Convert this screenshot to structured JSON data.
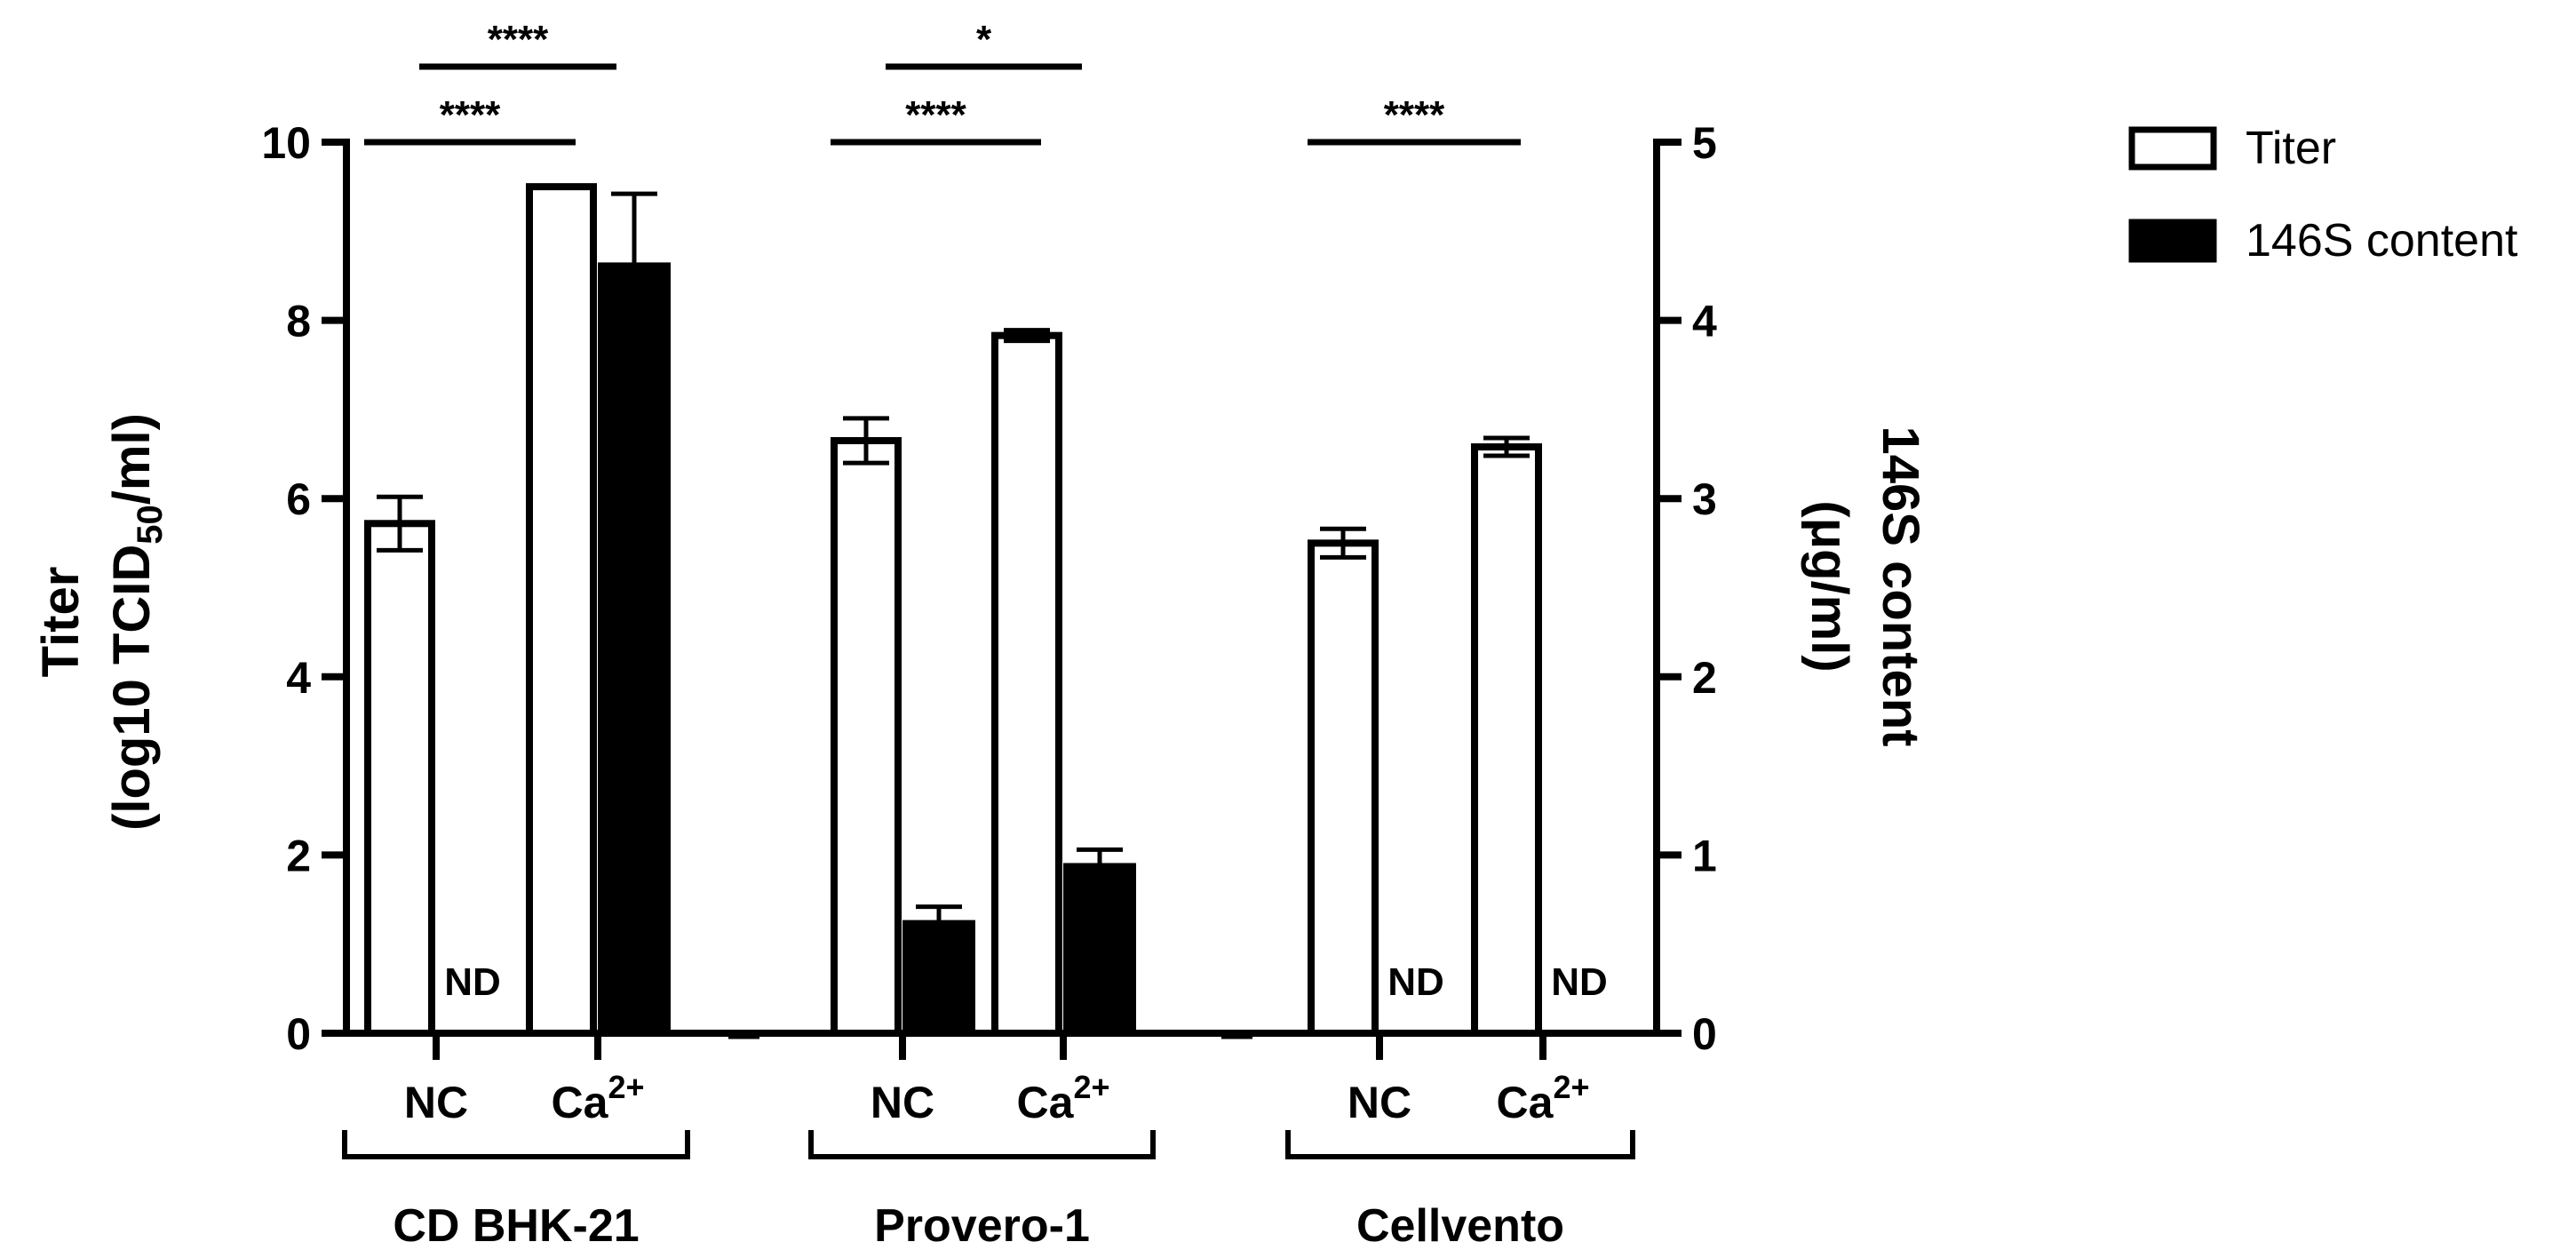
{
  "chart_data": {
    "type": "bar",
    "left_axis": {
      "title_line1": "Titer",
      "title_line2_prefix": "(log10 TCID",
      "title_line2_sub": "50",
      "title_line2_suffix": "/ml)",
      "ylim": [
        0,
        10
      ],
      "ticks": [
        "0",
        "2",
        "4",
        "6",
        "8",
        "10"
      ]
    },
    "right_axis": {
      "title_line1": "146S content",
      "title_line2": "(μg/ml)",
      "ylim": [
        0,
        5
      ],
      "ticks": [
        "0",
        "1",
        "2",
        "3",
        "4",
        "5"
      ]
    },
    "series_meta": [
      {
        "name": "Titer",
        "color": "#ffffff",
        "axis": "left"
      },
      {
        "name": "146S content",
        "color": "#000000",
        "axis": "right"
      }
    ],
    "groups": [
      {
        "name": "CD BHK-21",
        "conditions": [
          {
            "label": "NC",
            "sup": "",
            "titer": 5.72,
            "titer_err": 0.3,
            "s146": null,
            "s146_err": null,
            "s146_label": "ND"
          },
          {
            "label": "Ca",
            "sup": "2+",
            "titer": 9.5,
            "titer_err": 0,
            "s146": 4.32,
            "s146_err": 0.39,
            "s146_label": ""
          }
        ],
        "sig": [
          {
            "text": "****",
            "from": "titer-0",
            "to": "titer-1",
            "level": 1
          },
          {
            "text": "****",
            "from": "s146-0",
            "to": "s146-1",
            "level": 2
          }
        ]
      },
      {
        "name": "Provero-1",
        "conditions": [
          {
            "label": "NC",
            "sup": "",
            "titer": 6.65,
            "titer_err": 0.25,
            "s146": 0.63,
            "s146_err": 0.08,
            "s146_label": ""
          },
          {
            "label": "Ca",
            "sup": "2+",
            "titer": 7.83,
            "titer_err": 0.06,
            "s146": 0.95,
            "s146_err": 0.08,
            "s146_label": ""
          }
        ],
        "sig": [
          {
            "text": "****",
            "from": "titer-0",
            "to": "titer-1",
            "level": 1
          },
          {
            "text": "*",
            "from": "s146-0",
            "to": "s146-1",
            "level": 2
          }
        ]
      },
      {
        "name": "Cellvento",
        "conditions": [
          {
            "label": "NC",
            "sup": "",
            "titer": 5.5,
            "titer_err": 0.16,
            "s146": null,
            "s146_err": null,
            "s146_label": "ND"
          },
          {
            "label": "Ca",
            "sup": "2+",
            "titer": 6.58,
            "titer_err": 0.1,
            "s146": null,
            "s146_err": null,
            "s146_label": "ND"
          }
        ],
        "sig": [
          {
            "text": "****",
            "from": "titer-0",
            "to": "titer-1",
            "level": 1
          }
        ]
      }
    ],
    "legend": {
      "position": "top-right",
      "items": [
        {
          "label": "Titer",
          "fill": "#ffffff"
        },
        {
          "label": "146S content",
          "fill": "#000000"
        }
      ]
    }
  }
}
